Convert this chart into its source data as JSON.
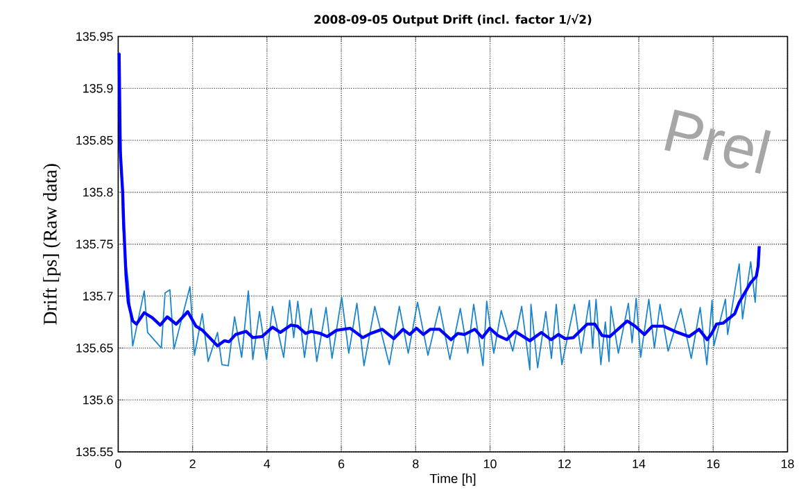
{
  "chart_data": {
    "type": "line",
    "title": "2008-09-05 Output Drift (incl. factor 1/√2)",
    "xlabel": "Time [h]",
    "ylabel": "Drift [ps] (Raw data)",
    "xlim": [
      0,
      18
    ],
    "xticks": [
      0,
      2,
      4,
      6,
      8,
      10,
      12,
      14,
      16,
      18
    ],
    "ylim": [
      135.55,
      135.95
    ],
    "yticks": [
      135.55,
      135.6,
      135.65,
      135.7,
      135.75,
      135.8,
      135.85,
      135.9,
      135.95
    ],
    "grid": true,
    "line_style": "solid",
    "marker": "none",
    "annotations": [
      "Prel"
    ],
    "series": [
      {
        "color": "#1a84cc",
        "x": [
          0.02,
          0.05,
          0.08,
          0.12,
          0.18,
          0.27,
          0.39,
          0.7,
          0.79,
          1.16,
          1.26,
          1.39,
          1.5,
          1.93,
          2.05,
          2.26,
          2.42,
          2.67,
          2.79,
          2.96,
          3.13,
          3.32,
          3.5,
          3.62,
          3.8,
          3.99,
          4.15,
          4.45,
          4.61,
          4.72,
          4.83,
          5.01,
          5.19,
          5.34,
          5.59,
          5.75,
          6.01,
          6.2,
          6.42,
          6.61,
          6.9,
          7.29,
          7.56,
          7.8,
          8.05,
          8.33,
          8.64,
          8.92,
          9.2,
          9.4,
          9.56,
          9.81,
          9.91,
          10.1,
          10.3,
          10.61,
          10.85,
          11.07,
          11.1,
          11.28,
          11.5,
          11.65,
          11.78,
          11.93,
          12.27,
          12.45,
          12.67,
          12.76,
          12.85,
          12.98,
          13.1,
          13.2,
          13.25,
          13.45,
          13.72,
          13.82,
          13.93,
          14.05,
          14.27,
          14.42,
          14.57,
          14.79,
          15.13,
          15.41,
          15.65,
          15.83,
          15.97,
          16.02,
          16.33,
          16.39,
          16.7,
          16.79,
          17.01,
          17.13,
          17.22
        ],
        "values": [
          135.935,
          135.88,
          135.84,
          135.77,
          135.74,
          135.714,
          135.652,
          135.705,
          135.665,
          135.65,
          135.703,
          135.706,
          135.649,
          135.709,
          135.643,
          135.683,
          135.637,
          135.665,
          135.634,
          135.633,
          135.68,
          135.641,
          135.705,
          135.639,
          135.685,
          135.639,
          135.69,
          135.641,
          135.696,
          135.66,
          135.695,
          135.641,
          135.688,
          135.637,
          135.689,
          135.64,
          135.699,
          135.645,
          135.693,
          135.633,
          135.69,
          135.634,
          135.69,
          135.645,
          135.694,
          135.643,
          135.69,
          135.639,
          135.688,
          135.645,
          135.692,
          135.633,
          135.695,
          135.645,
          135.686,
          135.647,
          135.69,
          135.629,
          135.692,
          135.631,
          135.685,
          135.64,
          135.692,
          135.634,
          135.692,
          135.645,
          135.696,
          135.65,
          135.697,
          135.634,
          135.675,
          135.637,
          135.69,
          135.645,
          135.693,
          135.655,
          135.698,
          135.641,
          135.697,
          135.65,
          135.692,
          135.647,
          135.688,
          135.64,
          135.689,
          135.634,
          135.696,
          135.652,
          135.697,
          135.663,
          135.731,
          135.678,
          135.733,
          135.694,
          135.746
        ]
      },
      {
        "color": "#0000ff",
        "x": [
          0.025,
          0.055,
          0.12,
          0.15,
          0.21,
          0.27,
          0.39,
          0.49,
          0.7,
          0.92,
          1.13,
          1.32,
          1.56,
          1.87,
          2.09,
          2.27,
          2.67,
          2.86,
          2.98,
          3.16,
          3.44,
          3.62,
          3.87,
          4.15,
          4.36,
          4.64,
          4.82,
          5.04,
          5.19,
          5.44,
          5.62,
          5.87,
          6.24,
          6.58,
          6.79,
          7.1,
          7.41,
          7.66,
          7.84,
          8.02,
          8.21,
          8.39,
          8.64,
          8.95,
          9.13,
          9.31,
          9.59,
          9.79,
          9.99,
          10.21,
          10.45,
          10.67,
          11.07,
          11.38,
          11.64,
          11.84,
          12.02,
          12.24,
          12.61,
          12.82,
          13.01,
          13.22,
          13.69,
          13.9,
          14.15,
          14.36,
          14.67,
          15.04,
          15.35,
          15.62,
          15.84,
          15.96,
          16.09,
          16.27,
          16.58,
          16.7,
          16.88,
          17.01,
          17.16,
          17.21,
          17.24
        ],
        "values": [
          135.934,
          135.84,
          135.8,
          135.767,
          135.72,
          135.694,
          135.676,
          135.673,
          135.684,
          135.679,
          135.672,
          135.68,
          135.673,
          135.685,
          135.671,
          135.667,
          135.652,
          135.657,
          135.656,
          135.663,
          135.666,
          135.66,
          135.661,
          135.67,
          135.665,
          135.672,
          135.671,
          135.664,
          135.666,
          135.664,
          135.661,
          135.667,
          135.669,
          135.66,
          135.664,
          135.668,
          135.659,
          135.668,
          135.663,
          135.669,
          135.663,
          135.668,
          135.668,
          135.658,
          135.664,
          135.663,
          135.668,
          135.66,
          135.669,
          135.662,
          135.658,
          135.666,
          135.657,
          135.665,
          135.658,
          135.663,
          135.659,
          135.66,
          135.673,
          135.673,
          135.662,
          135.661,
          135.676,
          135.671,
          135.663,
          135.671,
          135.671,
          135.665,
          135.661,
          135.668,
          135.658,
          135.664,
          135.673,
          135.674,
          135.683,
          135.694,
          135.705,
          135.713,
          135.719,
          135.729,
          135.748
        ]
      }
    ]
  }
}
